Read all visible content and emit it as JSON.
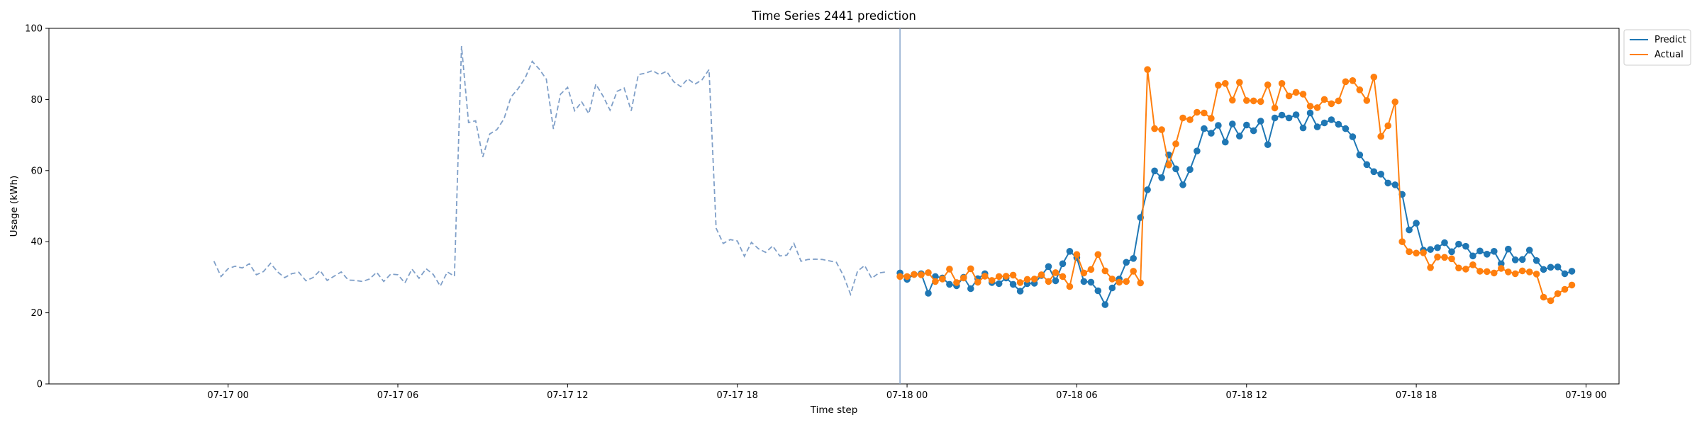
{
  "chart_data": {
    "type": "line",
    "title": "Time Series 2441 prediction",
    "xlabel": "Time step",
    "ylabel": "Usage (kWh)",
    "ylim": [
      0,
      100
    ],
    "xlim": [
      "2024-07-16 17:40",
      "2024-07-19 01:10"
    ],
    "y_ticks": [
      0,
      20,
      40,
      60,
      80,
      100
    ],
    "x_ticks": [
      {
        "t": "2024-07-17 00:00",
        "label": "07-17 00"
      },
      {
        "t": "2024-07-17 06:00",
        "label": "07-17 06"
      },
      {
        "t": "2024-07-17 12:00",
        "label": "07-17 12"
      },
      {
        "t": "2024-07-17 18:00",
        "label": "07-17 18"
      },
      {
        "t": "2024-07-18 00:00",
        "label": "07-18 00"
      },
      {
        "t": "2024-07-18 06:00",
        "label": "07-18 06"
      },
      {
        "t": "2024-07-18 12:00",
        "label": "07-18 12"
      },
      {
        "t": "2024-07-18 18:00",
        "label": "07-18 18"
      },
      {
        "t": "2024-07-19 00:00",
        "label": "07-19 00"
      }
    ],
    "grid": false,
    "legend_position": "top-right outside",
    "forecast_start": "2024-07-17 23:45",
    "history": {
      "start": "2024-07-16 23:30",
      "interval_minutes": 15,
      "color": "#7f9fc8",
      "style": "dashed",
      "values": [
        34.5,
        30.2,
        32.4,
        33.1,
        32.6,
        33.8,
        30.7,
        31.6,
        33.9,
        31.5,
        29.9,
        31.0,
        31.4,
        29.0,
        29.9,
        31.9,
        29.1,
        30.3,
        31.5,
        29.2,
        29.1,
        28.8,
        29.5,
        31.4,
        28.8,
        30.9,
        30.7,
        28.4,
        32.3,
        29.7,
        32.4,
        30.8,
        27.5,
        31.5,
        30.3,
        95.0,
        73.5,
        74.0,
        63.8,
        70.3,
        71.5,
        74.5,
        80.7,
        83.0,
        86.0,
        90.7,
        88.5,
        85.7,
        71.7,
        81.5,
        83.4,
        76.8,
        79.3,
        76.0,
        84.3,
        81.0,
        77.0,
        82.3,
        83.2,
        76.8,
        87.0,
        87.4,
        88.1,
        87.0,
        87.9,
        85.0,
        83.6,
        85.8,
        84.3,
        85.5,
        88.4,
        43.8,
        39.5,
        40.6,
        40.2,
        35.9,
        39.8,
        38.0,
        37.0,
        38.8,
        36.0,
        36.2,
        39.5,
        34.5,
        35.0,
        35.1,
        35.0,
        34.6,
        34.2,
        30.5,
        25.2,
        31.7,
        33.3,
        29.7,
        31.2,
        31.5
      ]
    },
    "series": [
      {
        "name": "Predict",
        "color": "#1f77b4",
        "start": "2024-07-17 23:45",
        "interval_minutes": 15,
        "values": [
          31.2,
          29.4,
          30.8,
          31.0,
          25.5,
          30.2,
          29.8,
          28.0,
          27.6,
          30.0,
          26.8,
          29.6,
          31.0,
          28.5,
          28.2,
          29.8,
          28.0,
          26.1,
          28.2,
          28.3,
          30.5,
          33.0,
          29.0,
          33.8,
          37.3,
          35.5,
          28.8,
          28.6,
          26.2,
          22.3,
          27.0,
          29.5,
          34.2,
          35.3,
          46.8,
          54.6,
          59.9,
          58.0,
          64.4,
          60.5,
          56.0,
          60.3,
          65.5,
          71.8,
          70.5,
          72.7,
          68.0,
          73.1,
          69.7,
          72.8,
          71.2,
          73.9,
          67.3,
          74.8,
          75.6,
          74.8,
          75.7,
          72.0,
          76.2,
          72.3,
          73.4,
          74.3,
          73.0,
          71.8,
          69.5,
          64.4,
          61.7,
          59.7,
          59.0,
          56.5,
          56.0,
          53.3,
          43.3,
          45.2,
          37.6,
          37.8,
          38.3,
          39.7,
          37.2,
          39.3,
          38.7,
          36.0,
          37.4,
          36.5,
          37.3,
          33.8,
          37.9,
          34.9,
          35.0,
          37.6,
          34.7,
          32.2,
          32.8,
          32.9,
          31.0,
          31.7
        ]
      },
      {
        "name": "Actual",
        "color": "#ff7f0e",
        "start": "2024-07-17 23:45",
        "interval_minutes": 15,
        "values": [
          30.2,
          30.2,
          30.8,
          30.7,
          31.3,
          28.8,
          29.5,
          32.3,
          28.5,
          29.8,
          32.4,
          28.6,
          30.3,
          29.1,
          30.2,
          30.3,
          30.6,
          28.5,
          29.4,
          29.5,
          30.7,
          28.8,
          31.3,
          30.2,
          27.4,
          36.4,
          31.2,
          32.2,
          36.4,
          31.8,
          29.5,
          28.6,
          28.8,
          31.7,
          28.4,
          88.4,
          71.8,
          71.5,
          61.6,
          67.5,
          74.8,
          74.3,
          76.4,
          76.2,
          74.7,
          84.0,
          84.5,
          79.8,
          84.8,
          79.7,
          79.6,
          79.4,
          84.1,
          77.6,
          84.5,
          81.0,
          82.0,
          81.5,
          78.1,
          77.7,
          80.0,
          78.8,
          79.6,
          85.0,
          85.3,
          82.7,
          79.7,
          86.3,
          69.6,
          72.6,
          79.3,
          40.0,
          37.2,
          36.8,
          36.9,
          32.7,
          35.7,
          35.6,
          35.2,
          32.6,
          32.3,
          33.5,
          31.7,
          31.6,
          31.2,
          32.5,
          31.5,
          31.0,
          31.8,
          31.5,
          30.9,
          24.4,
          23.4,
          25.4,
          26.6,
          27.8
        ]
      }
    ]
  }
}
